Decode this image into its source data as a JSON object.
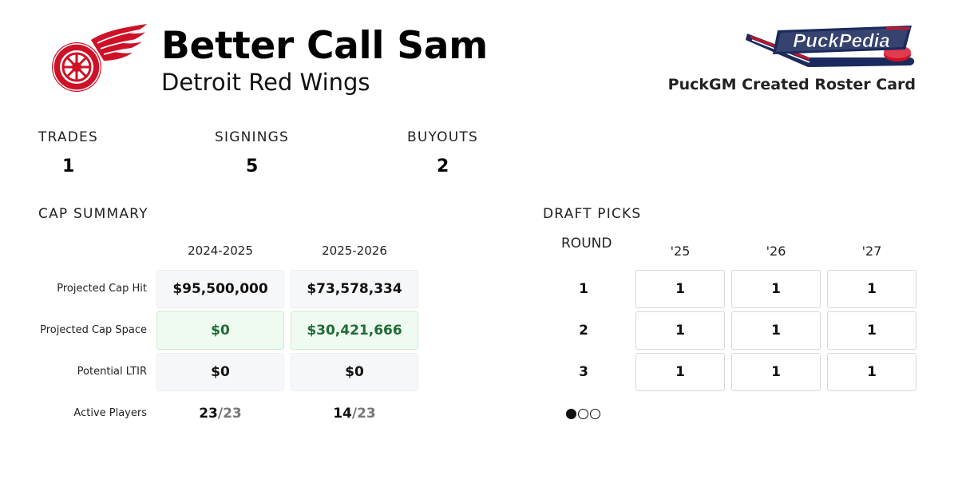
{
  "header": {
    "title": "Better Call Sam",
    "subtitle": "Detroit Red Wings",
    "team_logo_icon": "red-wings-winged-wheel-icon",
    "brand_logo_text": "PuckPedia",
    "brand_caption": "PuckGM Created Roster Card"
  },
  "stats": [
    {
      "label": "TRADES",
      "value": "1"
    },
    {
      "label": "SIGNINGS",
      "value": "5"
    },
    {
      "label": "BUYOUTS",
      "value": "2"
    }
  ],
  "cap_summary": {
    "heading": "CAP SUMMARY",
    "columns": [
      "2024-2025",
      "2025-2026"
    ],
    "rows": [
      {
        "label": "Projected Cap Hit",
        "values": [
          "$95,500,000",
          "$73,578,334"
        ]
      },
      {
        "label": "Projected Cap Space",
        "values": [
          "$0",
          "$30,421,666"
        ]
      },
      {
        "label": "Potential LTIR",
        "values": [
          "$0",
          "$0"
        ]
      }
    ],
    "active_players": {
      "label": "Active Players",
      "values": [
        {
          "count": "23",
          "max": "/23"
        },
        {
          "count": "14",
          "max": "/23"
        }
      ]
    }
  },
  "draft_picks": {
    "heading": "DRAFT PICKS",
    "round_label": "ROUND",
    "years": [
      "'25",
      "'26",
      "'27"
    ],
    "rounds": [
      {
        "round": "1",
        "picks": [
          "1",
          "1",
          "1"
        ]
      },
      {
        "round": "2",
        "picks": [
          "1",
          "1",
          "1"
        ]
      },
      {
        "round": "3",
        "picks": [
          "1",
          "1",
          "1"
        ]
      }
    ],
    "pagination": {
      "pages": 3,
      "active": 1
    }
  },
  "colors": {
    "red_wings_red": "#ce1126",
    "green_cell": "#effbf0",
    "green_text": "#1f6b35",
    "brand_navy": "#1b2a5c"
  }
}
